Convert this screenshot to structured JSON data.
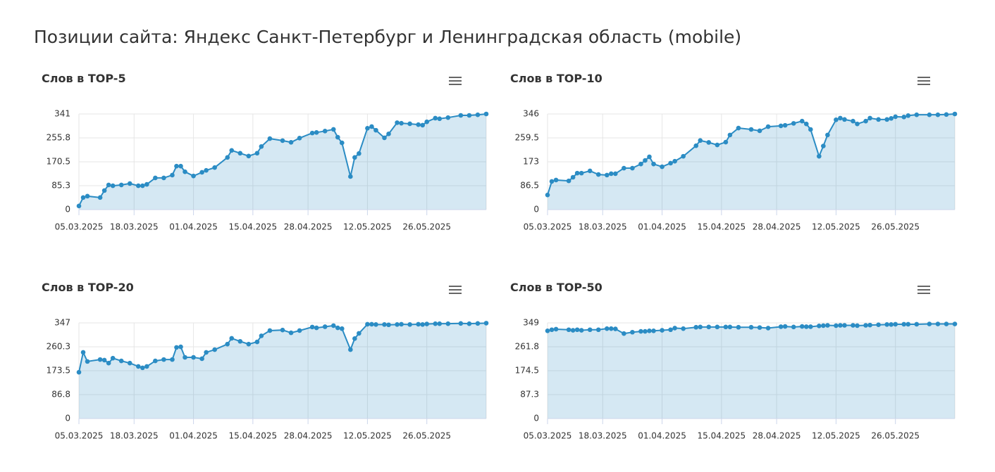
{
  "title": "Позиции сайта: Яндекс Санкт-Петербург и Ленинградская область (mobile)",
  "chart_data": [
    {
      "type": "area",
      "title": "Слов в TOP-5",
      "color": "#2b8cc4",
      "grid": true,
      "x": [
        "05.03.2025",
        "06.03.2025",
        "07.03.2025",
        "10.03.2025",
        "11.03.2025",
        "12.03.2025",
        "13.03.2025",
        "15.03.2025",
        "17.03.2025",
        "19.03.2025",
        "20.03.2025",
        "21.03.2025",
        "23.03.2025",
        "25.03.2025",
        "27.03.2025",
        "28.03.2025",
        "29.03.2025",
        "30.03.2025",
        "01.04.2025",
        "03.04.2025",
        "04.04.2025",
        "06.04.2025",
        "09.04.2025",
        "10.04.2025",
        "12.04.2025",
        "14.04.2025",
        "16.04.2025",
        "17.04.2025",
        "19.04.2025",
        "22.04.2025",
        "24.04.2025",
        "26.04.2025",
        "29.04.2025",
        "30.04.2025",
        "02.05.2025",
        "04.05.2025",
        "05.05.2025",
        "06.05.2025",
        "08.05.2025",
        "09.05.2025",
        "10.05.2025",
        "12.05.2025",
        "13.05.2025",
        "14.05.2025",
        "16.05.2025",
        "17.05.2025",
        "19.05.2025",
        "20.05.2025",
        "22.05.2025",
        "24.05.2025",
        "25.05.2025",
        "26.05.2025",
        "28.05.2025",
        "29.05.2025",
        "31.05.2025",
        "03.06.2025",
        "05.06.2025",
        "07.06.2025",
        "09.06.2025"
      ],
      "values": [
        13,
        43,
        48,
        43,
        68,
        88,
        85,
        88,
        93,
        85,
        85,
        90,
        113,
        113,
        123,
        155,
        155,
        135,
        120,
        133,
        140,
        150,
        186,
        211,
        201,
        191,
        201,
        225,
        253,
        246,
        240,
        255,
        273,
        275,
        280,
        286,
        258,
        238,
        118,
        186,
        200,
        290,
        296,
        283,
        256,
        270,
        310,
        308,
        306,
        303,
        301,
        313,
        326,
        324,
        328,
        336,
        336,
        338,
        341
      ],
      "xlim": [
        "05.03.2025",
        "09.06.2025"
      ],
      "xticks": [
        "05.03.2025",
        "18.03.2025",
        "01.04.2025",
        "15.04.2025",
        "28.04.2025",
        "12.05.2025",
        "26.05.2025"
      ],
      "ylim": [
        0,
        341
      ],
      "yticks": [
        0,
        85.3,
        170.5,
        255.8,
        341
      ]
    },
    {
      "type": "area",
      "title": "Слов в TOP-10",
      "color": "#2b8cc4",
      "grid": true,
      "x": [
        "05.03.2025",
        "06.03.2025",
        "07.03.2025",
        "10.03.2025",
        "11.03.2025",
        "12.03.2025",
        "13.03.2025",
        "15.03.2025",
        "17.03.2025",
        "19.03.2025",
        "20.03.2025",
        "21.03.2025",
        "23.03.2025",
        "25.03.2025",
        "27.03.2025",
        "28.03.2025",
        "29.03.2025",
        "30.03.2025",
        "01.04.2025",
        "03.04.2025",
        "04.04.2025",
        "06.04.2025",
        "09.04.2025",
        "10.04.2025",
        "12.04.2025",
        "14.04.2025",
        "16.04.2025",
        "17.04.2025",
        "19.04.2025",
        "22.04.2025",
        "24.04.2025",
        "26.04.2025",
        "29.04.2025",
        "30.04.2025",
        "02.05.2025",
        "04.05.2025",
        "05.05.2025",
        "06.05.2025",
        "08.05.2025",
        "09.05.2025",
        "10.05.2025",
        "12.05.2025",
        "13.05.2025",
        "14.05.2025",
        "16.05.2025",
        "17.05.2025",
        "19.05.2025",
        "20.05.2025",
        "22.05.2025",
        "24.05.2025",
        "25.05.2025",
        "26.05.2025",
        "28.05.2025",
        "29.05.2025",
        "31.05.2025",
        "03.06.2025",
        "05.06.2025",
        "07.06.2025",
        "09.06.2025"
      ],
      "values": [
        53,
        102,
        107,
        104,
        117,
        132,
        132,
        140,
        127,
        125,
        130,
        130,
        150,
        150,
        165,
        178,
        191,
        165,
        155,
        168,
        175,
        193,
        231,
        250,
        243,
        234,
        244,
        270,
        295,
        290,
        285,
        300,
        303,
        305,
        312,
        320,
        310,
        290,
        193,
        230,
        270,
        325,
        331,
        326,
        320,
        310,
        320,
        331,
        326,
        326,
        330,
        336,
        335,
        340,
        343,
        343,
        343,
        344,
        346
      ],
      "xlim": [
        "05.03.2025",
        "09.06.2025"
      ],
      "xticks": [
        "05.03.2025",
        "18.03.2025",
        "01.04.2025",
        "15.04.2025",
        "28.04.2025",
        "12.05.2025",
        "26.05.2025"
      ],
      "ylim": [
        0,
        346
      ],
      "yticks": [
        0,
        86.5,
        173,
        259.5,
        346
      ]
    },
    {
      "type": "area",
      "title": "Слов в TOP-20",
      "color": "#2b8cc4",
      "grid": true,
      "x": [
        "05.03.2025",
        "06.03.2025",
        "07.03.2025",
        "10.03.2025",
        "11.03.2025",
        "12.03.2025",
        "13.03.2025",
        "15.03.2025",
        "17.03.2025",
        "19.03.2025",
        "20.03.2025",
        "21.03.2025",
        "23.03.2025",
        "25.03.2025",
        "27.03.2025",
        "28.03.2025",
        "29.03.2025",
        "30.03.2025",
        "01.04.2025",
        "03.04.2025",
        "04.04.2025",
        "06.04.2025",
        "09.04.2025",
        "10.04.2025",
        "12.04.2025",
        "14.04.2025",
        "16.04.2025",
        "17.04.2025",
        "19.04.2025",
        "22.04.2025",
        "24.04.2025",
        "26.04.2025",
        "29.04.2025",
        "30.04.2025",
        "02.05.2025",
        "04.05.2025",
        "05.05.2025",
        "06.05.2025",
        "08.05.2025",
        "09.05.2025",
        "10.05.2025",
        "12.05.2025",
        "13.05.2025",
        "14.05.2025",
        "16.05.2025",
        "17.05.2025",
        "19.05.2025",
        "20.05.2025",
        "22.05.2025",
        "24.05.2025",
        "25.05.2025",
        "26.05.2025",
        "28.05.2025",
        "29.05.2025",
        "31.05.2025",
        "03.06.2025",
        "05.06.2025",
        "07.06.2025",
        "09.06.2025"
      ],
      "values": [
        168,
        240,
        207,
        214,
        212,
        201,
        219,
        209,
        201,
        189,
        184,
        189,
        209,
        214,
        214,
        258,
        260,
        222,
        222,
        217,
        240,
        250,
        270,
        291,
        280,
        270,
        278,
        300,
        319,
        321,
        311,
        319,
        332,
        329,
        333,
        337,
        329,
        326,
        250,
        290,
        309,
        342,
        342,
        341,
        341,
        340,
        341,
        342,
        341,
        342,
        341,
        343,
        344,
        344,
        344,
        345,
        344,
        345,
        346
      ],
      "xlim": [
        "05.03.2025",
        "09.06.2025"
      ],
      "xticks": [
        "05.03.2025",
        "18.03.2025",
        "01.04.2025",
        "15.04.2025",
        "28.04.2025",
        "12.05.2025",
        "26.05.2025"
      ],
      "ylim": [
        0,
        347
      ],
      "yticks": [
        0,
        86.8,
        173.5,
        260.3,
        347
      ]
    },
    {
      "type": "area",
      "title": "Слов в TOP-50",
      "color": "#2b8cc4",
      "grid": true,
      "x": [
        "05.03.2025",
        "06.03.2025",
        "07.03.2025",
        "10.03.2025",
        "11.03.2025",
        "12.03.2025",
        "13.03.2025",
        "15.03.2025",
        "17.03.2025",
        "19.03.2025",
        "20.03.2025",
        "21.03.2025",
        "23.03.2025",
        "25.03.2025",
        "27.03.2025",
        "28.03.2025",
        "29.03.2025",
        "30.03.2025",
        "01.04.2025",
        "03.04.2025",
        "04.04.2025",
        "06.04.2025",
        "09.04.2025",
        "10.04.2025",
        "12.04.2025",
        "14.04.2025",
        "16.04.2025",
        "17.04.2025",
        "19.04.2025",
        "22.04.2025",
        "24.04.2025",
        "26.04.2025",
        "29.04.2025",
        "30.04.2025",
        "02.05.2025",
        "04.05.2025",
        "05.05.2025",
        "06.05.2025",
        "08.05.2025",
        "09.05.2025",
        "10.05.2025",
        "12.05.2025",
        "13.05.2025",
        "14.05.2025",
        "16.05.2025",
        "17.05.2025",
        "19.05.2025",
        "20.05.2025",
        "22.05.2025",
        "24.05.2025",
        "25.05.2025",
        "26.05.2025",
        "28.05.2025",
        "29.05.2025",
        "31.05.2025",
        "03.06.2025",
        "05.06.2025",
        "07.06.2025",
        "09.06.2025"
      ],
      "values": [
        320,
        324,
        326,
        324,
        322,
        324,
        322,
        324,
        324,
        328,
        328,
        327,
        310,
        315,
        318,
        318,
        320,
        320,
        322,
        324,
        330,
        328,
        333,
        334,
        334,
        334,
        334,
        334,
        333,
        333,
        332,
        330,
        335,
        336,
        334,
        336,
        335,
        335,
        338,
        339,
        340,
        339,
        340,
        340,
        340,
        339,
        340,
        341,
        342,
        343,
        343,
        344,
        344,
        344,
        344,
        345,
        345,
        345,
        345
      ],
      "xlim": [
        "05.03.2025",
        "09.06.2025"
      ],
      "xticks": [
        "05.03.2025",
        "18.03.2025",
        "01.04.2025",
        "15.04.2025",
        "28.04.2025",
        "12.05.2025",
        "26.05.2025"
      ],
      "ylim": [
        0,
        349
      ],
      "yticks": [
        0,
        87.3,
        174.5,
        261.8,
        349
      ]
    }
  ]
}
